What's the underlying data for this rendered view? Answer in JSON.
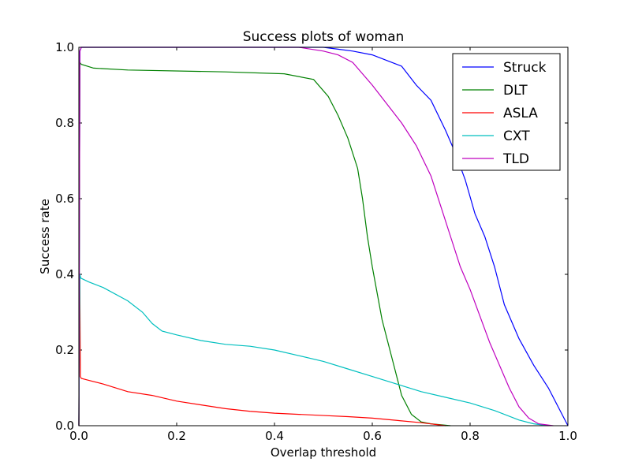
{
  "chart_data": {
    "type": "line",
    "title": "Success plots of woman",
    "xlabel": "Overlap threshold",
    "ylabel": "Success rate",
    "xlim": [
      0,
      1
    ],
    "ylim": [
      0,
      1
    ],
    "xticks": [
      "0.0",
      "0.2",
      "0.4",
      "0.6",
      "0.8",
      "1.0"
    ],
    "yticks": [
      "0.0",
      "0.2",
      "0.4",
      "0.6",
      "0.8",
      "1.0"
    ],
    "grid": false,
    "legend_position": "top-right",
    "series": [
      {
        "name": "Struck",
        "color": "#0000ff",
        "x": [
          0,
          0.002,
          0.005,
          0.46,
          0.5,
          0.53,
          0.56,
          0.6,
          0.64,
          0.66,
          0.69,
          0.72,
          0.75,
          0.77,
          0.79,
          0.81,
          0.83,
          0.85,
          0.87,
          0.9,
          0.93,
          0.96,
          0.98,
          1.0
        ],
        "y": [
          0.0,
          0.99,
          1.0,
          1.0,
          1.0,
          0.995,
          0.99,
          0.98,
          0.96,
          0.95,
          0.9,
          0.86,
          0.78,
          0.72,
          0.65,
          0.56,
          0.5,
          0.42,
          0.32,
          0.23,
          0.16,
          0.1,
          0.05,
          0.0
        ]
      },
      {
        "name": "DLT",
        "color": "#008000",
        "x": [
          0,
          0.002,
          0.005,
          0.03,
          0.1,
          0.3,
          0.42,
          0.48,
          0.51,
          0.53,
          0.55,
          0.57,
          0.58,
          0.59,
          0.6,
          0.61,
          0.62,
          0.64,
          0.66,
          0.68,
          0.7,
          0.72,
          0.76
        ],
        "y": [
          0.0,
          0.96,
          0.955,
          0.945,
          0.94,
          0.935,
          0.93,
          0.915,
          0.87,
          0.82,
          0.76,
          0.68,
          0.6,
          0.5,
          0.42,
          0.35,
          0.28,
          0.18,
          0.08,
          0.03,
          0.01,
          0.005,
          0.0
        ]
      },
      {
        "name": "ASLA",
        "color": "#ff0000",
        "x": [
          0,
          0.002,
          0.003,
          0.005,
          0.02,
          0.05,
          0.1,
          0.15,
          0.2,
          0.25,
          0.3,
          0.35,
          0.4,
          0.45,
          0.5,
          0.55,
          0.6,
          0.65,
          0.7,
          0.75
        ],
        "y": [
          0.0,
          0.39,
          0.13,
          0.125,
          0.12,
          0.11,
          0.09,
          0.08,
          0.065,
          0.055,
          0.045,
          0.038,
          0.033,
          0.03,
          0.027,
          0.024,
          0.02,
          0.014,
          0.008,
          0.0
        ]
      },
      {
        "name": "CXT",
        "color": "#00bfbf",
        "x": [
          0,
          0.002,
          0.004,
          0.02,
          0.05,
          0.1,
          0.13,
          0.15,
          0.17,
          0.2,
          0.25,
          0.3,
          0.35,
          0.4,
          0.45,
          0.5,
          0.55,
          0.6,
          0.65,
          0.7,
          0.75,
          0.8,
          0.85,
          0.9,
          0.93,
          0.96
        ],
        "y": [
          0.0,
          0.4,
          0.39,
          0.38,
          0.365,
          0.33,
          0.3,
          0.27,
          0.25,
          0.24,
          0.225,
          0.215,
          0.21,
          0.2,
          0.185,
          0.17,
          0.15,
          0.13,
          0.11,
          0.09,
          0.075,
          0.06,
          0.04,
          0.015,
          0.005,
          0.0
        ]
      },
      {
        "name": "TLD",
        "color": "#bf00bf",
        "x": [
          0,
          0.002,
          0.005,
          0.45,
          0.5,
          0.53,
          0.56,
          0.58,
          0.6,
          0.63,
          0.66,
          0.69,
          0.72,
          0.74,
          0.76,
          0.78,
          0.8,
          0.82,
          0.84,
          0.86,
          0.88,
          0.9,
          0.92,
          0.94,
          0.97
        ],
        "y": [
          0.0,
          0.99,
          1.0,
          1.0,
          0.99,
          0.98,
          0.96,
          0.93,
          0.9,
          0.85,
          0.8,
          0.74,
          0.66,
          0.58,
          0.5,
          0.42,
          0.36,
          0.29,
          0.22,
          0.16,
          0.1,
          0.05,
          0.02,
          0.005,
          0.0
        ]
      }
    ]
  }
}
